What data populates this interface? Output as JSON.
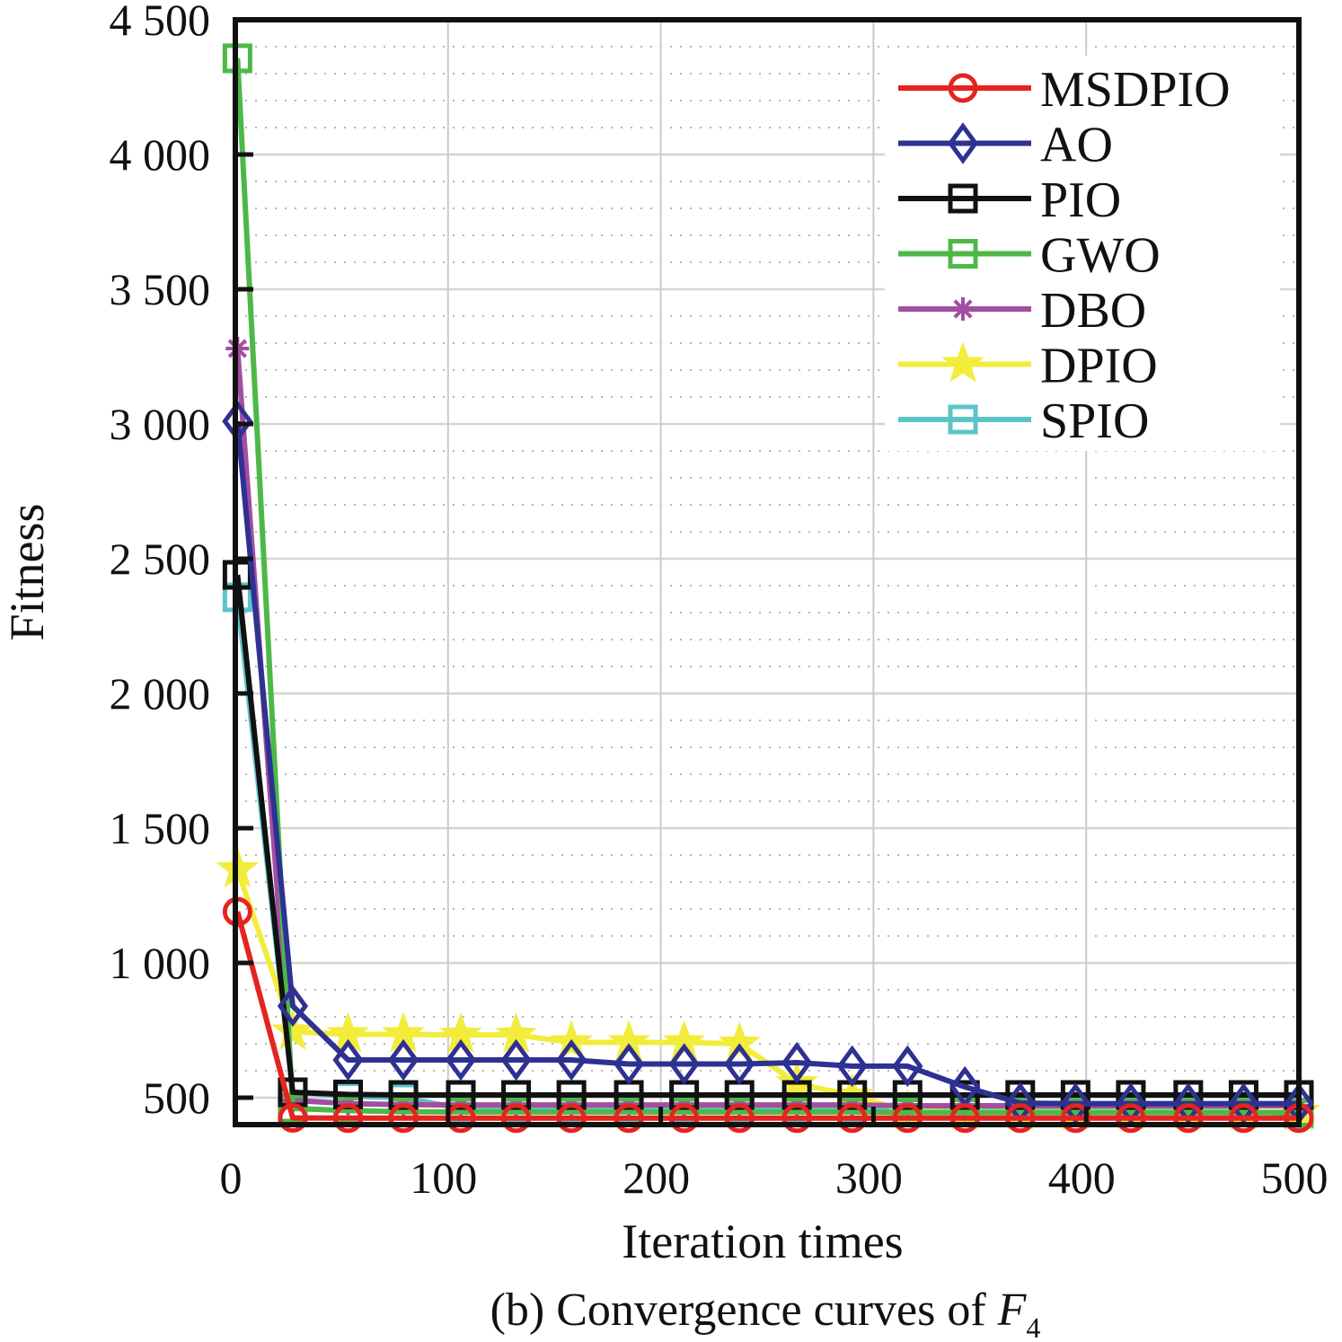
{
  "chart_data": {
    "type": "line",
    "title": "",
    "caption": {
      "prefix": "(b) Convergence curves of ",
      "function_symbol": "F",
      "function_subscript": "4"
    },
    "xlabel": "Iteration times",
    "ylabel": "Fitness",
    "xlim": [
      0,
      500
    ],
    "ylim": [
      400,
      4500
    ],
    "xticks": [
      0,
      100,
      200,
      300,
      400,
      500
    ],
    "xtick_labels": [
      "0",
      "100",
      "200",
      "300",
      "400",
      "500"
    ],
    "yticks": [
      500,
      1000,
      1500,
      2000,
      2500,
      3000,
      3500,
      4000,
      4500
    ],
    "ytick_labels": [
      "500",
      "1 000",
      "1 500",
      "2 000",
      "2 500",
      "3 000",
      "3 500",
      "4 000",
      "4 500"
    ],
    "grid": true,
    "legend_position": "top-right",
    "x": [
      1,
      27,
      53,
      79,
      106,
      132,
      158,
      185,
      211,
      237,
      264,
      290,
      316,
      343,
      369,
      395,
      421,
      448,
      474,
      500
    ],
    "series": [
      {
        "name": "MSDPIO",
        "color": "#e52421",
        "marker": "circle",
        "values": [
          1190,
          425,
          424,
          424,
          424,
          424,
          424,
          424,
          424,
          424,
          424,
          424,
          424,
          424,
          424,
          424,
          424,
          424,
          424,
          424
        ]
      },
      {
        "name": "AO",
        "color": "#2e3192",
        "marker": "diamond",
        "values": [
          3010,
          840,
          640,
          640,
          640,
          640,
          640,
          625,
          625,
          625,
          630,
          617,
          617,
          540,
          480,
          478,
          478,
          478,
          478,
          478
        ]
      },
      {
        "name": "PIO",
        "color": "#111111",
        "marker": "square",
        "values": [
          2440,
          520,
          512,
          510,
          510,
          510,
          510,
          510,
          510,
          510,
          510,
          510,
          510,
          510,
          510,
          510,
          510,
          510,
          510,
          510
        ]
      },
      {
        "name": "GWO",
        "color": "#4db848",
        "marker": "square",
        "values": [
          4357,
          460,
          452,
          448,
          447,
          447,
          447,
          447,
          447,
          447,
          447,
          447,
          445,
          445,
          445,
          445,
          445,
          445,
          445,
          445
        ]
      },
      {
        "name": "DBO",
        "color": "#a34ea0",
        "marker": "asterisk",
        "values": [
          3280,
          490,
          478,
          474,
          473,
          473,
          473,
          473,
          473,
          473,
          473,
          473,
          470,
          470,
          470,
          470,
          470,
          470,
          470,
          470
        ]
      },
      {
        "name": "DPIO",
        "color": "#f2ec3b",
        "marker": "star",
        "values": [
          1347,
          745,
          735,
          735,
          733,
          733,
          705,
          705,
          705,
          700,
          553,
          507,
          450,
          447,
          447,
          447,
          447,
          447,
          447,
          447
        ]
      },
      {
        "name": "SPIO",
        "color": "#5bc4c8",
        "marker": "square",
        "values": [
          2357,
          520,
          505,
          500,
          460,
          458,
          458,
          458,
          458,
          458,
          455,
          453,
          450,
          450,
          450,
          450,
          450,
          450,
          450,
          440
        ]
      }
    ]
  }
}
